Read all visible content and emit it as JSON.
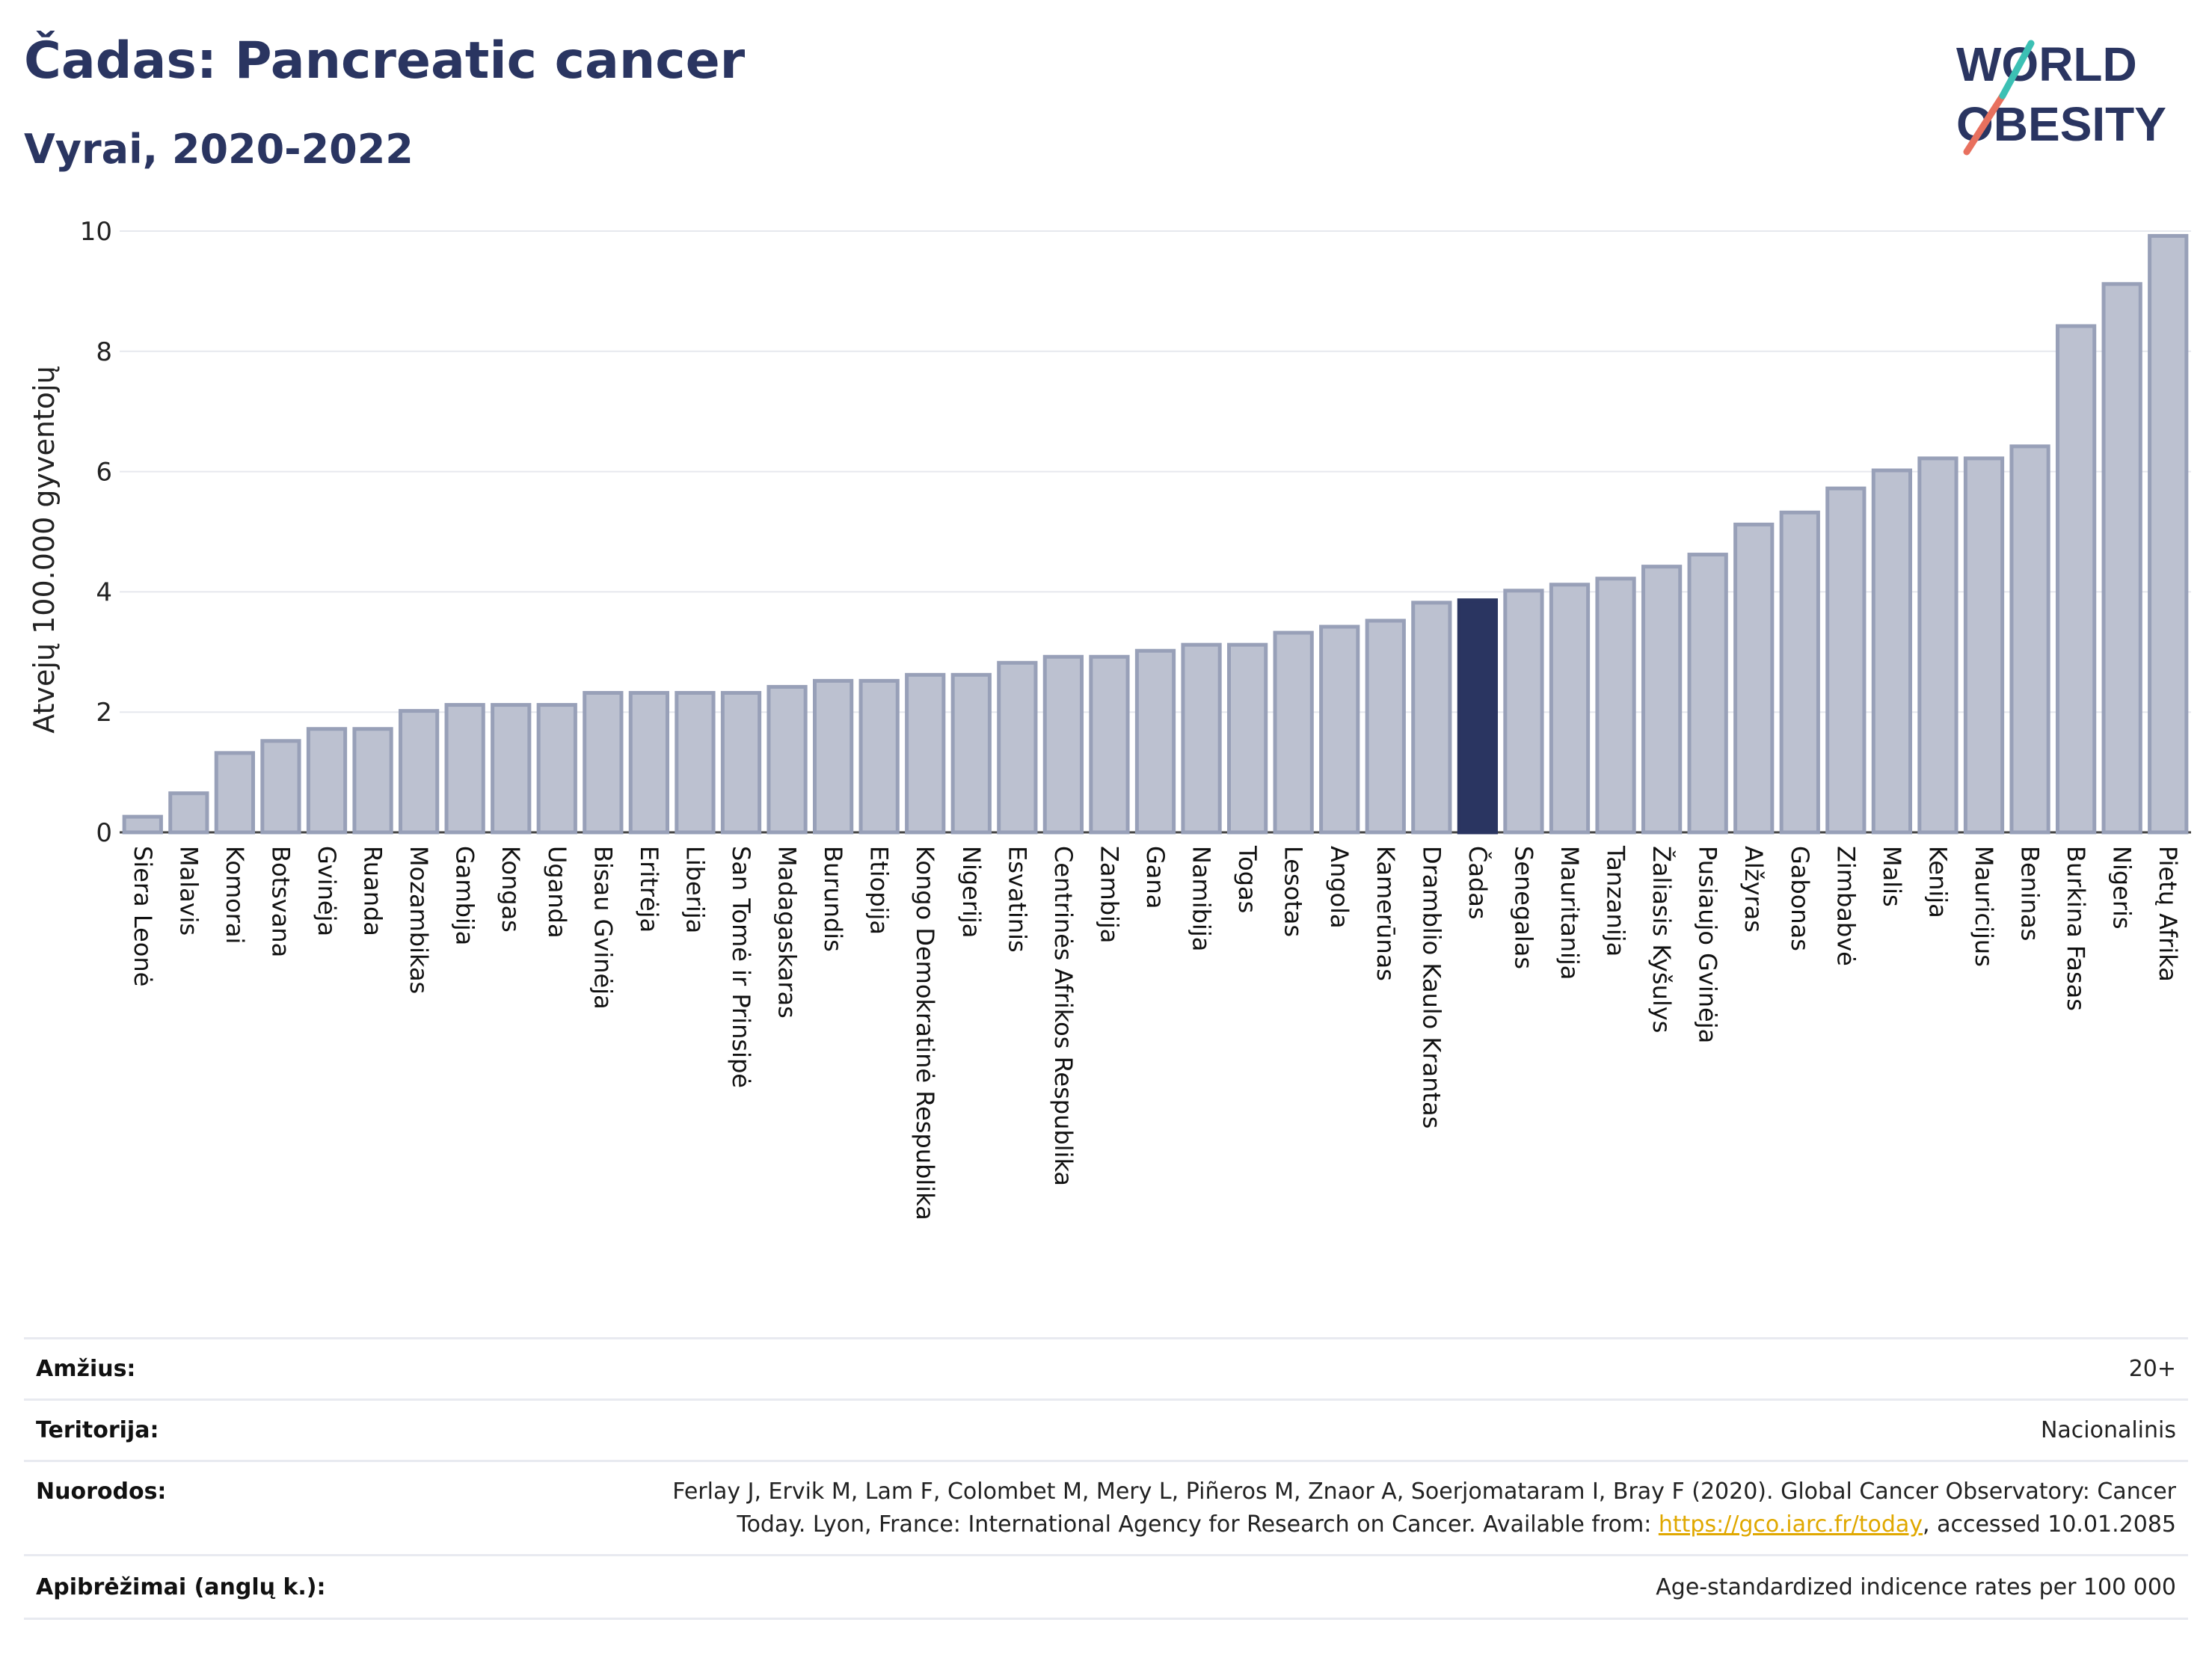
{
  "header": {
    "title": "Čadas: Pancreatic cancer",
    "subtitle": "Vyrai, 2020-2022"
  },
  "logo": {
    "line1": "WORLD",
    "line2": "OBESITY"
  },
  "colors": {
    "bar": "#bcc1d0",
    "bar_border": "#98a0b8",
    "highlight": "#2a3561",
    "title": "#2a3561",
    "link": "#e0a800"
  },
  "chart_data": {
    "type": "bar",
    "ylabel": "Atvejų 100.000 gyventojų",
    "ylim": [
      0,
      10
    ],
    "yticks": [
      0,
      2,
      4,
      6,
      8,
      10
    ],
    "grid": true,
    "highlight": "Čadas",
    "categories": [
      "Siera Leonė",
      "Malavis",
      "Komorai",
      "Botsvana",
      "Gvinėja",
      "Ruanda",
      "Mozambikas",
      "Gambija",
      "Kongas",
      "Uganda",
      "Bisau Gvinėja",
      "Eritrėja",
      "Liberija",
      "San Tomė ir Prinsipė",
      "Madagaskaras",
      "Burundis",
      "Etiopija",
      "Kongo Demokratinė Respublika",
      "Nigerija",
      "Esvatinis",
      "Centrinės Afrikos Respublika",
      "Zambija",
      "Gana",
      "Namibija",
      "Togas",
      "Lesotas",
      "Angola",
      "Kamerūnas",
      "Dramblio Kaulo Krantas",
      "Čadas",
      "Senegalas",
      "Mauritanija",
      "Tanzanija",
      "Žaliasis Kyšulys",
      "Pusiaujo Gvinėja",
      "Alžyras",
      "Gabonas",
      "Zimbabvė",
      "Malis",
      "Kenija",
      "Mauricijus",
      "Beninas",
      "Burkina Fasas",
      "Nigeris",
      "Pietų Afrika"
    ],
    "values": [
      0.26,
      0.65,
      1.32,
      1.52,
      1.72,
      1.72,
      2.02,
      2.12,
      2.12,
      2.12,
      2.32,
      2.32,
      2.32,
      2.32,
      2.42,
      2.52,
      2.52,
      2.62,
      2.62,
      2.82,
      2.92,
      2.92,
      3.02,
      3.12,
      3.12,
      3.32,
      3.42,
      3.52,
      3.82,
      3.86,
      4.02,
      4.12,
      4.22,
      4.42,
      4.62,
      5.12,
      5.32,
      5.72,
      6.02,
      6.22,
      6.22,
      6.42,
      8.42,
      9.12,
      9.92
    ]
  },
  "info": {
    "age_label": "Amžius:",
    "age_value": "20+",
    "territory_label": "Teritorija:",
    "territory_value": "Nacionalinis",
    "refs_label": "Nuorodos:",
    "refs_line1": "Ferlay J, Ervik M, Lam F, Colombet M, Mery L, Piñeros M, Znaor A, Soerjomataram I, Bray F (2020). Global Cancer Observatory: Cancer",
    "refs_line2_pre": "Today. Lyon, France: International Agency for Research on Cancer. Available from: ",
    "refs_link": "https://gco.iarc.fr/today",
    "refs_line2_post": ", accessed 10.01.2085",
    "defs_label": "Apibrėžimai (anglų k.):",
    "defs_value": "Age-standardized indicence rates per 100 000"
  }
}
